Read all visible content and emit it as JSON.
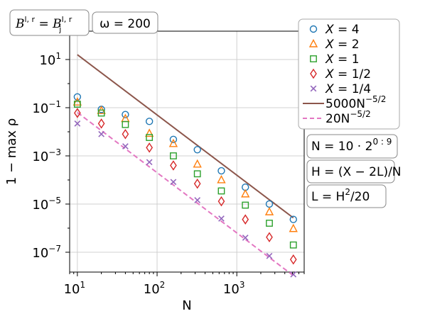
{
  "chart_data": {
    "type": "scatter",
    "xlabel": "N",
    "ylabel": "1 − max ρ",
    "xscale": "log",
    "yscale": "log",
    "xlim": [
      8,
      7000
    ],
    "ylim": [
      1.5e-08,
      150
    ],
    "grid": true,
    "legend_position": "right, outside plot",
    "xticks": [
      10,
      100,
      1000
    ],
    "xtick_base": "10",
    "xtick_exponents": [
      "1",
      "2",
      "3"
    ],
    "yticks": [
      1e-07,
      1e-05,
      0.001,
      0.1,
      10
    ],
    "ytick_base": "10",
    "ytick_exponents": [
      "−7",
      "−5",
      "−3",
      "−1",
      "1"
    ],
    "x": [
      10,
      20,
      40,
      80,
      160,
      320,
      640,
      1280,
      2560,
      5120
    ],
    "series": [
      {
        "name": "X = 4",
        "marker": "circle",
        "color": "#1f77b4",
        "values": [
          0.28,
          0.085,
          0.052,
          0.027,
          0.0048,
          0.0018,
          0.00024,
          5e-05,
          1e-05,
          2.3e-06
        ]
      },
      {
        "name": "X = 2",
        "marker": "triangle",
        "color": "#ff7f0e",
        "values": [
          0.17,
          0.075,
          0.035,
          0.0085,
          0.0032,
          0.00045,
          0.0001,
          2.6e-05,
          4.7e-06,
          9.5e-07
        ]
      },
      {
        "name": "X = 1",
        "marker": "square",
        "color": "#2ca02c",
        "values": [
          0.14,
          0.06,
          0.02,
          0.0058,
          0.001,
          0.00018,
          3.5e-05,
          9e-06,
          1.6e-06,
          2e-07
        ]
      },
      {
        "name": "X = 1/2",
        "marker": "diamond",
        "color": "#d62728",
        "values": [
          0.06,
          0.022,
          0.008,
          0.0022,
          0.0004,
          7e-05,
          1.3e-05,
          2.3e-06,
          4.2e-07,
          5e-08
        ]
      },
      {
        "name": "X = 1/4",
        "marker": "x",
        "color": "#9467bd",
        "values": [
          0.022,
          0.008,
          0.0025,
          0.00055,
          8.25e-05,
          1.45e-05,
          2.5e-06,
          4e-07,
          7e-08,
          1.2e-08
        ]
      }
    ],
    "reference_lines": [
      {
        "name": "5000N^{−5/2}",
        "coef": 5000,
        "power": -2.5,
        "color": "#8c564b",
        "dash": "solid"
      },
      {
        "name": "20N^{−5/2}",
        "coef": 20,
        "power": -2.5,
        "color": "#e377c2",
        "dash": "dashed"
      }
    ],
    "legend_labels": [
      {
        "prefix": "X = ",
        "value": "4"
      },
      {
        "prefix": "X = ",
        "value": "2"
      },
      {
        "prefix": "X = ",
        "value": "1"
      },
      {
        "prefix": "X = ",
        "value": "1/2"
      },
      {
        "prefix": "X = ",
        "value": "1/4"
      },
      {
        "prefix": "5000N",
        "value": "−5/2"
      },
      {
        "prefix": "20N",
        "value": "−5/2"
      }
    ],
    "annotations": {
      "top_left": {
        "lhs": "B",
        "lhs_sup": "l, r",
        "eq": " = ",
        "rhs": "B",
        "rhs_sub": "j",
        "rhs_sup": "l, r"
      },
      "top_mid": "ω = 200",
      "right": [
        {
          "pre": "N = 10 · 2",
          "sup": "0 : 9",
          "post": ""
        },
        {
          "pre": "H = (X − 2L)/N",
          "sup": "",
          "post": ""
        },
        {
          "pre": "L = H",
          "sup": "2",
          "post": "/20"
        }
      ]
    }
  }
}
